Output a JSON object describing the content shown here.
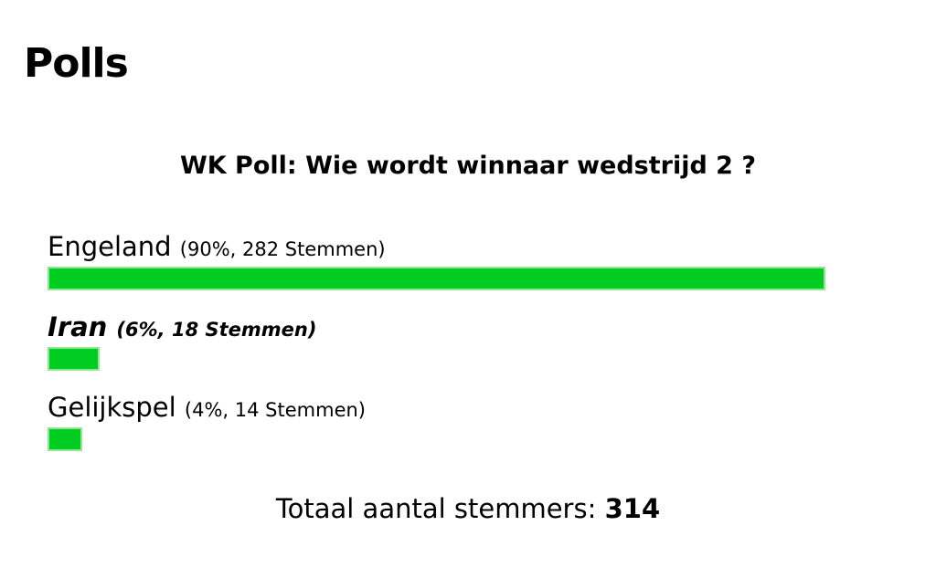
{
  "header": {
    "title": "Polls"
  },
  "poll": {
    "question": "WK Poll: Wie wordt winnaar wedstrijd 2 ?",
    "options": [
      {
        "label": "Engeland",
        "detail": "(90%, 282 Stemmen)",
        "percent": 90,
        "selected": false
      },
      {
        "label": "Iran",
        "detail": "(6%, 18 Stemmen)",
        "percent": 6,
        "selected": true
      },
      {
        "label": "Gelijkspel",
        "detail": "(4%, 14 Stemmen)",
        "percent": 4,
        "selected": false
      }
    ],
    "bar_color": "#00cc22",
    "total_label": "Totaal aantal stemmers:",
    "total": 314
  }
}
